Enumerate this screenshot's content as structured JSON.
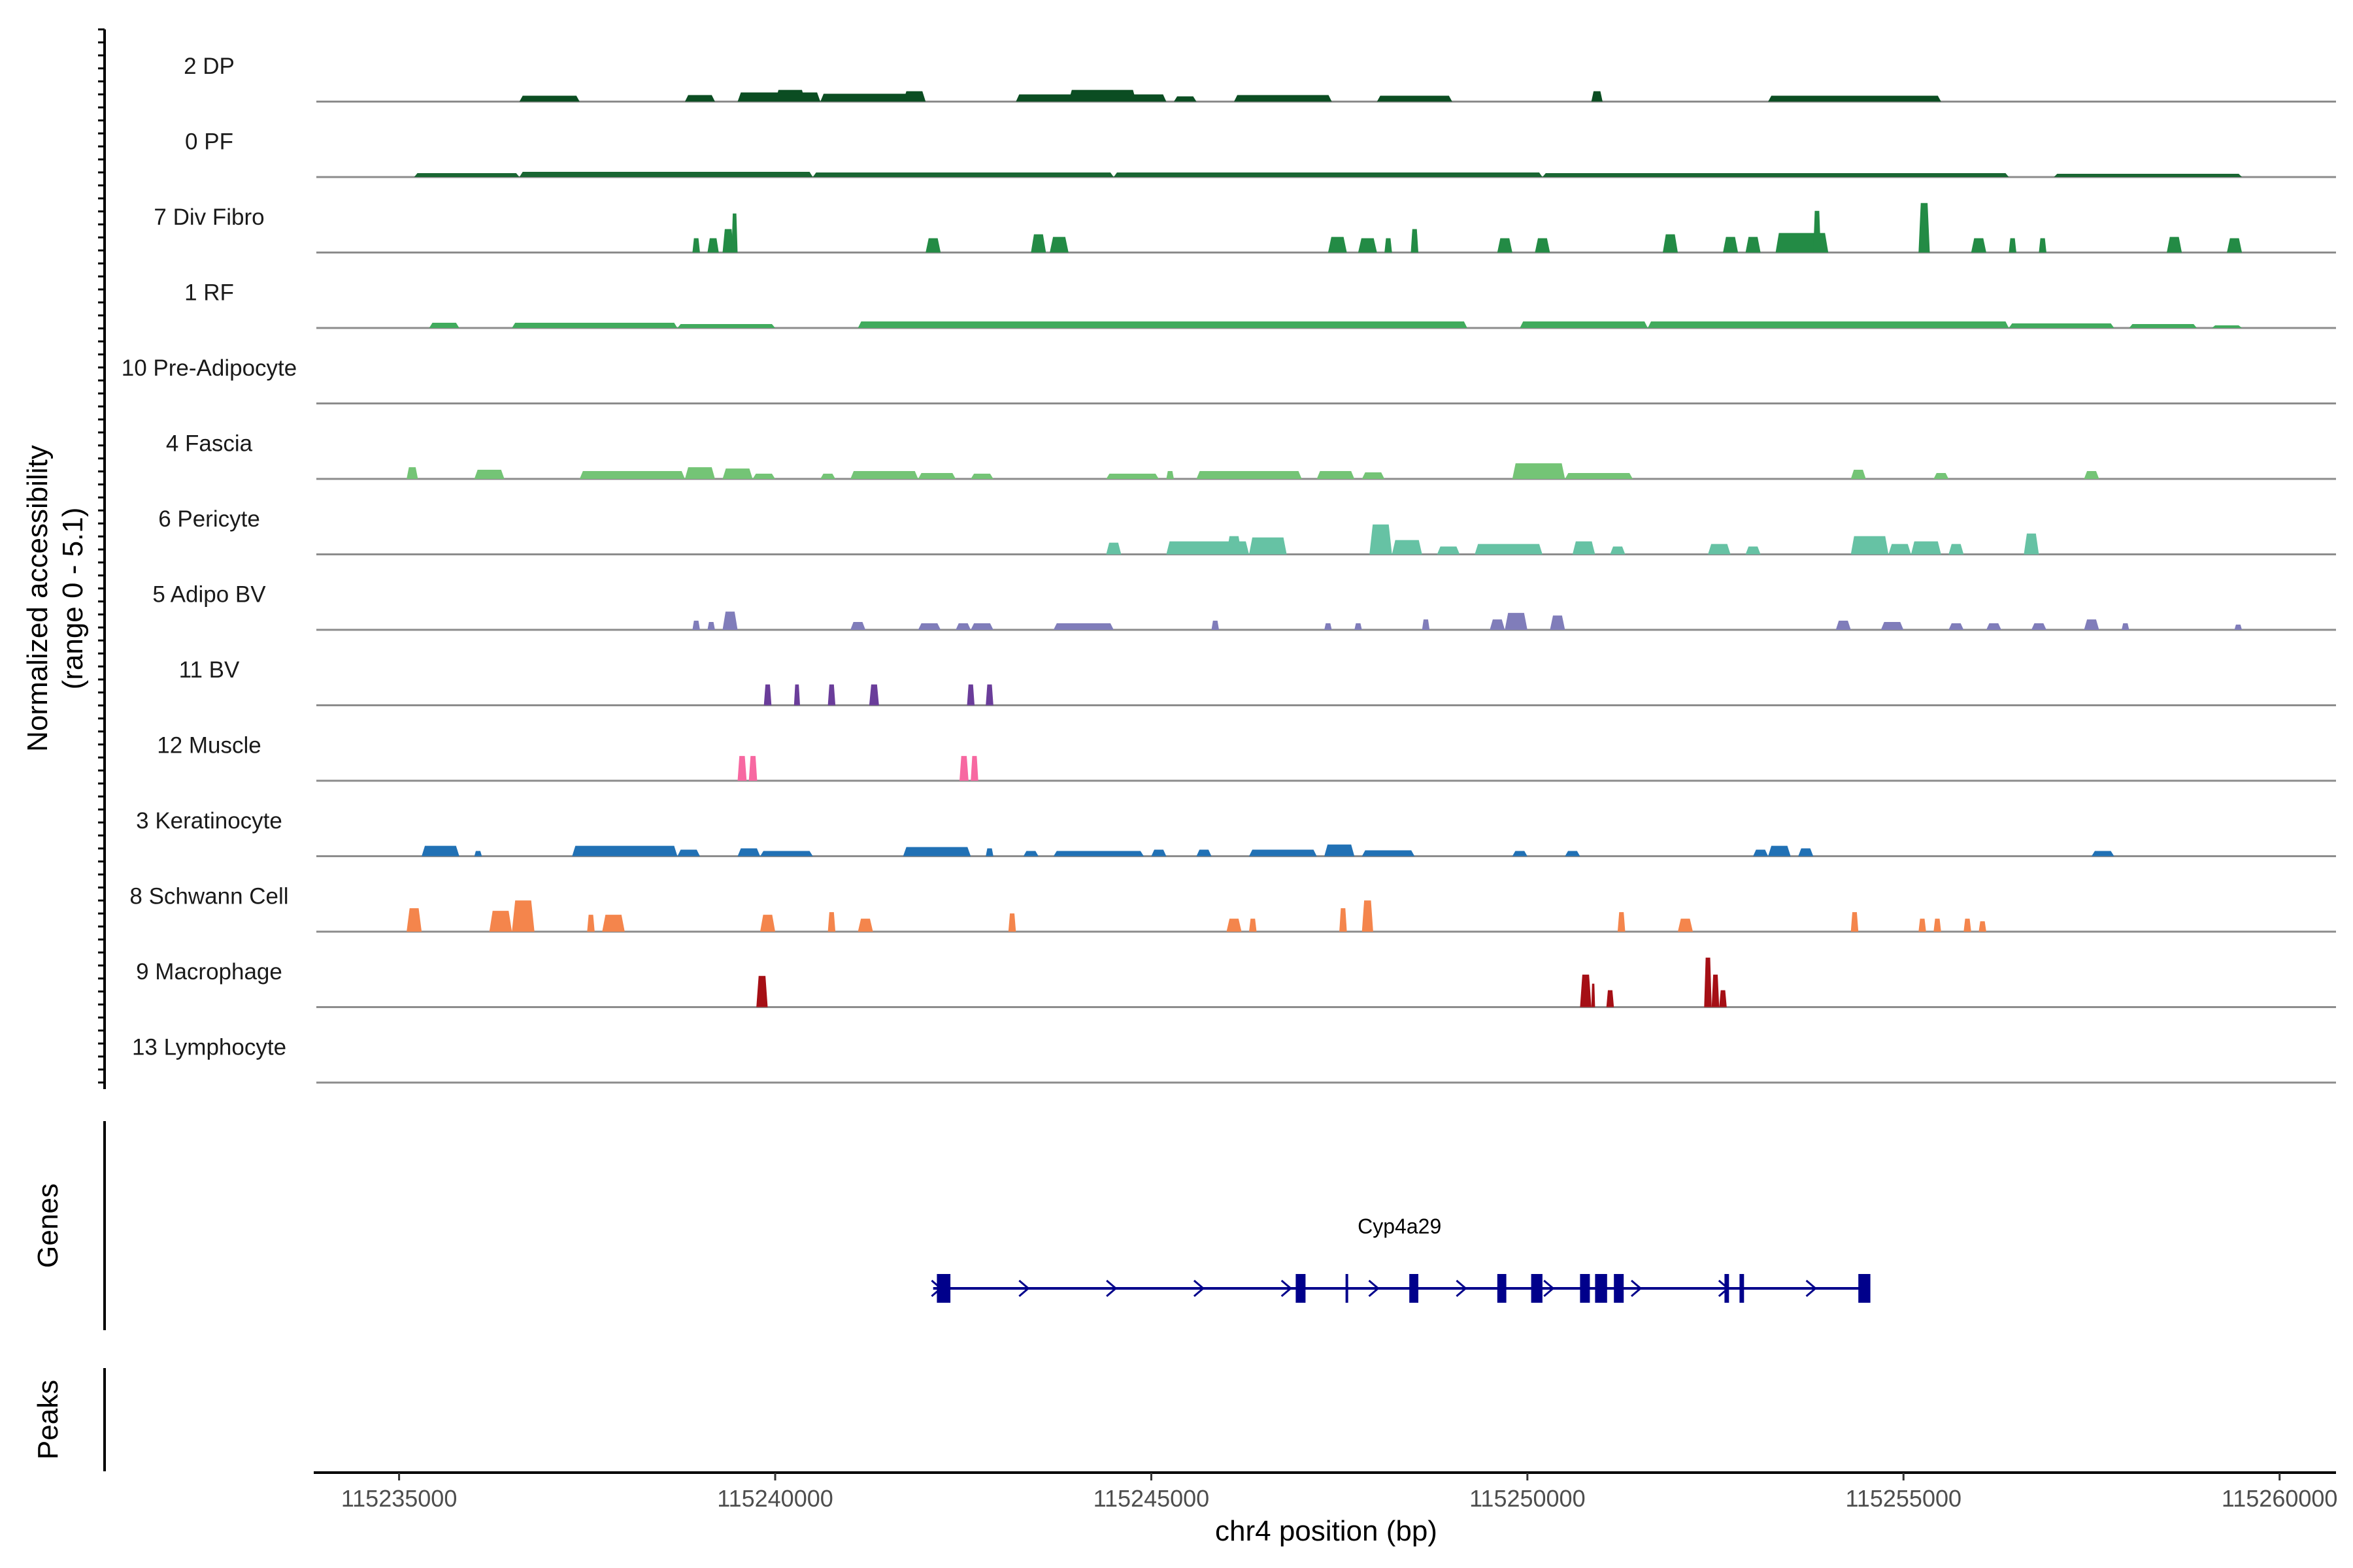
{
  "chart_data": {
    "type": "coverage-track",
    "y_axis_title_line1": "Normalized accessibility",
    "y_axis_title_line2": "(range 0 - 5.1)",
    "y_range": [
      0,
      5.1
    ],
    "x_axis_title": "chr4 position (bp)",
    "x_range": [
      115233900,
      115260750
    ],
    "x_ticks": [
      115235000,
      115240000,
      115245000,
      115250000,
      115255000,
      115260000
    ],
    "x_tick_labels": [
      "115235000",
      "115240000",
      "115245000",
      "115250000",
      "115255000",
      "115260000"
    ],
    "genes_panel_label": "Genes",
    "peaks_panel_label": "Peaks",
    "genes": [
      {
        "name": "Cyp4a29",
        "strand": "+",
        "start": 115242100,
        "end": 115254500,
        "exons": [
          [
            115242150,
            115242330
          ],
          [
            115246920,
            115247050
          ],
          [
            115248430,
            115248550
          ],
          [
            115249600,
            115249720
          ],
          [
            115250050,
            115250200
          ],
          [
            115250700,
            115250830
          ],
          [
            115250900,
            115251060
          ],
          [
            115251150,
            115251280
          ],
          [
            115252620,
            115252680
          ],
          [
            115252820,
            115252880
          ],
          [
            115254400,
            115254560
          ]
        ],
        "splits": [
          115247600
        ]
      }
    ],
    "tracks": [
      {
        "name": "2 DP",
        "color": "#0b4d22",
        "peaks": [
          [
            115236600,
            115237400,
            0.45
          ],
          [
            115238800,
            115239200,
            0.5
          ],
          [
            115239500,
            115240600,
            0.7
          ],
          [
            115240000,
            115240400,
            0.9
          ],
          [
            115240600,
            115241900,
            0.6
          ],
          [
            115241700,
            115242000,
            0.8
          ],
          [
            115243200,
            115245200,
            0.55
          ],
          [
            115243900,
            115244800,
            0.9
          ],
          [
            115245300,
            115245600,
            0.4
          ],
          [
            115246100,
            115247400,
            0.5
          ],
          [
            115248000,
            115249000,
            0.45
          ],
          [
            115250850,
            115251000,
            0.8
          ],
          [
            115253200,
            115255500,
            0.45
          ]
        ]
      },
      {
        "name": "0 PF",
        "color": "#196632",
        "peaks": [
          [
            115235200,
            115236600,
            0.3
          ],
          [
            115236600,
            115240500,
            0.4
          ],
          [
            115240500,
            115244500,
            0.35
          ],
          [
            115244500,
            115250200,
            0.35
          ],
          [
            115250200,
            115256400,
            0.3
          ],
          [
            115257000,
            115259500,
            0.25
          ]
        ]
      },
      {
        "name": "7 Div Fibro",
        "color": "#238b45",
        "peaks": [
          [
            115238900,
            115239000,
            1.1
          ],
          [
            115239100,
            115239250,
            1.1
          ],
          [
            115239300,
            115239450,
            1.8
          ],
          [
            115239420,
            115239500,
            3.0
          ],
          [
            115242000,
            115242200,
            1.1
          ],
          [
            115243400,
            115243600,
            1.4
          ],
          [
            115243650,
            115243900,
            1.2
          ],
          [
            115247350,
            115247600,
            1.2
          ],
          [
            115247750,
            115248000,
            1.1
          ],
          [
            115248100,
            115248200,
            1.1
          ],
          [
            115248450,
            115248550,
            1.8
          ],
          [
            115249600,
            115249800,
            1.1
          ],
          [
            115250100,
            115250300,
            1.1
          ],
          [
            115251800,
            115252000,
            1.4
          ],
          [
            115252600,
            115252800,
            1.2
          ],
          [
            115252900,
            115253100,
            1.2
          ],
          [
            115253300,
            115254000,
            1.5
          ],
          [
            115253800,
            115253900,
            3.2
          ],
          [
            115255200,
            115255350,
            3.8
          ],
          [
            115255900,
            115256100,
            1.1
          ],
          [
            115256400,
            115256500,
            1.1
          ],
          [
            115256800,
            115256900,
            1.1
          ],
          [
            115258500,
            115258700,
            1.2
          ],
          [
            115259300,
            115259500,
            1.1
          ]
        ]
      },
      {
        "name": "1 RF",
        "color": "#41ab5d",
        "peaks": [
          [
            115235400,
            115235800,
            0.4
          ],
          [
            115236500,
            115238700,
            0.4
          ],
          [
            115238700,
            115240000,
            0.3
          ],
          [
            115241100,
            115249200,
            0.5
          ],
          [
            115249900,
            115251600,
            0.5
          ],
          [
            115251600,
            115256400,
            0.5
          ],
          [
            115256400,
            115257800,
            0.35
          ],
          [
            115258000,
            115258900,
            0.3
          ],
          [
            115259100,
            115259500,
            0.2
          ]
        ]
      },
      {
        "name": "10 Pre-Adipocyte",
        "color": "#74c476",
        "peaks": []
      },
      {
        "name": "4 Fascia",
        "color": "#74c476",
        "peaks": [
          [
            115235100,
            115235250,
            0.9
          ],
          [
            115236000,
            115236400,
            0.7
          ],
          [
            115237400,
            115238800,
            0.6
          ],
          [
            115238800,
            115239200,
            0.9
          ],
          [
            115239300,
            115239700,
            0.8
          ],
          [
            115239700,
            115240000,
            0.4
          ],
          [
            115240600,
            115240800,
            0.4
          ],
          [
            115241000,
            115241900,
            0.6
          ],
          [
            115241900,
            115242400,
            0.45
          ],
          [
            115242600,
            115242900,
            0.4
          ],
          [
            115244400,
            115245100,
            0.4
          ],
          [
            115245200,
            115245300,
            0.6
          ],
          [
            115245600,
            115247000,
            0.6
          ],
          [
            115247200,
            115247700,
            0.6
          ],
          [
            115247800,
            115248100,
            0.5
          ],
          [
            115249800,
            115250500,
            1.2
          ],
          [
            115250500,
            115251400,
            0.45
          ],
          [
            115254300,
            115254500,
            0.7
          ],
          [
            115255400,
            115255600,
            0.45
          ],
          [
            115257400,
            115257600,
            0.6
          ]
        ]
      },
      {
        "name": "6 Pericyte",
        "color": "#66c2a4",
        "peaks": [
          [
            115244400,
            115244600,
            0.9
          ],
          [
            115245200,
            115246300,
            1.0
          ],
          [
            115246000,
            115246200,
            1.4
          ],
          [
            115246300,
            115246800,
            1.3
          ],
          [
            115247900,
            115248200,
            2.3
          ],
          [
            115248200,
            115248600,
            1.1
          ],
          [
            115248800,
            115249100,
            0.6
          ],
          [
            115249300,
            115250200,
            0.8
          ],
          [
            115250600,
            115250900,
            1.0
          ],
          [
            115251100,
            115251300,
            0.6
          ],
          [
            115252400,
            115252700,
            0.8
          ],
          [
            115252900,
            115253100,
            0.6
          ],
          [
            115254300,
            115254800,
            1.4
          ],
          [
            115254800,
            115255100,
            0.8
          ],
          [
            115255100,
            115255500,
            1.0
          ],
          [
            115255600,
            115255800,
            0.8
          ],
          [
            115256600,
            115256800,
            1.6
          ]
        ]
      },
      {
        "name": "5 Adipo BV",
        "color": "#807dba",
        "peaks": [
          [
            115238900,
            115239000,
            0.7
          ],
          [
            115239100,
            115239200,
            0.6
          ],
          [
            115239300,
            115239500,
            1.4
          ],
          [
            115241000,
            115241200,
            0.6
          ],
          [
            115241900,
            115242200,
            0.5
          ],
          [
            115242400,
            115242600,
            0.5
          ],
          [
            115242600,
            115242900,
            0.5
          ],
          [
            115243700,
            115244500,
            0.5
          ],
          [
            115245800,
            115245900,
            0.7
          ],
          [
            115247300,
            115247400,
            0.5
          ],
          [
            115247700,
            115247800,
            0.5
          ],
          [
            115248600,
            115248700,
            0.8
          ],
          [
            115249500,
            115249700,
            0.8
          ],
          [
            115249700,
            115250000,
            1.3
          ],
          [
            115250300,
            115250500,
            1.1
          ],
          [
            115254100,
            115254300,
            0.7
          ],
          [
            115254700,
            115255000,
            0.6
          ],
          [
            115255600,
            115255800,
            0.5
          ],
          [
            115256100,
            115256300,
            0.5
          ],
          [
            115256700,
            115256900,
            0.5
          ],
          [
            115257400,
            115257600,
            0.8
          ],
          [
            115257900,
            115258000,
            0.5
          ],
          [
            115259400,
            115259500,
            0.4
          ]
        ]
      },
      {
        "name": "11 BV",
        "color": "#6a3d9a",
        "peaks": [
          [
            115239850,
            115239950,
            1.6
          ],
          [
            115240250,
            115240330,
            1.6
          ],
          [
            115240700,
            115240800,
            1.6
          ],
          [
            115241250,
            115241380,
            1.6
          ],
          [
            115242550,
            115242650,
            1.6
          ],
          [
            115242800,
            115242900,
            1.6
          ]
        ]
      },
      {
        "name": "12 Muscle",
        "color": "#f768a1",
        "peaks": [
          [
            115239500,
            115239620,
            1.9
          ],
          [
            115239650,
            115239760,
            1.9
          ],
          [
            115242450,
            115242570,
            1.9
          ],
          [
            115242600,
            115242700,
            1.9
          ]
        ]
      },
      {
        "name": "3 Keratinocyte",
        "color": "#2171b5",
        "peaks": [
          [
            115235300,
            115235800,
            0.8
          ],
          [
            115236000,
            115236100,
            0.4
          ],
          [
            115237300,
            115238700,
            0.8
          ],
          [
            115238700,
            115239000,
            0.5
          ],
          [
            115239500,
            115239800,
            0.6
          ],
          [
            115239800,
            115240500,
            0.4
          ],
          [
            115241700,
            115242600,
            0.7
          ],
          [
            115242800,
            115242900,
            0.6
          ],
          [
            115243300,
            115243500,
            0.4
          ],
          [
            115243700,
            115244900,
            0.4
          ],
          [
            115245000,
            115245200,
            0.5
          ],
          [
            115245600,
            115245800,
            0.5
          ],
          [
            115246300,
            115247200,
            0.5
          ],
          [
            115247300,
            115247700,
            0.9
          ],
          [
            115247800,
            115248500,
            0.45
          ],
          [
            115249800,
            115250000,
            0.4
          ],
          [
            115250500,
            115250700,
            0.4
          ],
          [
            115253000,
            115253200,
            0.5
          ],
          [
            115253200,
            115253500,
            0.8
          ],
          [
            115253600,
            115253800,
            0.6
          ],
          [
            115257500,
            115257800,
            0.4
          ]
        ]
      },
      {
        "name": "8 Schwann Cell",
        "color": "#f4854c",
        "peaks": [
          [
            115235100,
            115235300,
            1.8
          ],
          [
            115236200,
            115236500,
            1.6
          ],
          [
            115236500,
            115236800,
            2.4
          ],
          [
            115237500,
            115237600,
            1.3
          ],
          [
            115237700,
            115238000,
            1.3
          ],
          [
            115239800,
            115240000,
            1.3
          ],
          [
            115240700,
            115240800,
            1.5
          ],
          [
            115241100,
            115241300,
            1.0
          ],
          [
            115243100,
            115243200,
            1.4
          ],
          [
            115246000,
            115246200,
            1.0
          ],
          [
            115246300,
            115246400,
            1.0
          ],
          [
            115247500,
            115247600,
            1.8
          ],
          [
            115247800,
            115247950,
            2.4
          ],
          [
            115251200,
            115251300,
            1.5
          ],
          [
            115252000,
            115252200,
            1.0
          ],
          [
            115254300,
            115254400,
            1.5
          ],
          [
            115255200,
            115255300,
            1.0
          ],
          [
            115255400,
            115255500,
            1.0
          ],
          [
            115255800,
            115255900,
            1.0
          ],
          [
            115256000,
            115256100,
            0.8
          ]
        ]
      },
      {
        "name": "9 Macrophage",
        "color": "#a50f15",
        "peaks": [
          [
            115239750,
            115239900,
            2.4
          ],
          [
            115250700,
            115250850,
            2.5
          ],
          [
            115250850,
            115250900,
            1.8
          ],
          [
            115251050,
            115251150,
            1.3
          ],
          [
            115252350,
            115252450,
            3.8
          ],
          [
            115252450,
            115252550,
            2.5
          ],
          [
            115252550,
            115252650,
            1.3
          ]
        ]
      },
      {
        "name": "13 Lymphocyte",
        "color": "#1a1a1a",
        "peaks": []
      }
    ]
  }
}
